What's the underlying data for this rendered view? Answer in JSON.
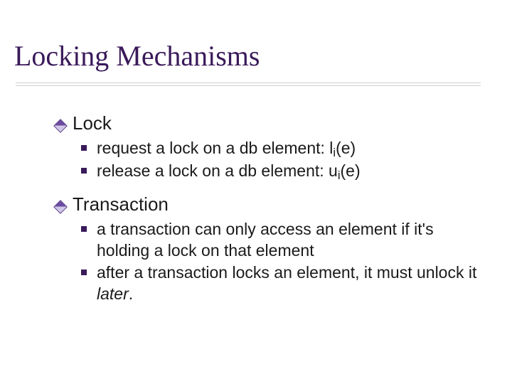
{
  "colors": {
    "title_color": "#3a1a5a",
    "body_color": "#1a1a1a",
    "diamond_border": "#5a3b8a",
    "square_color": "#3a1a5a",
    "rule_color": "#cfcfcf",
    "background": "#ffffff"
  },
  "typography": {
    "title_family": "Times New Roman",
    "title_size_pt": 40,
    "body_family": "Verdana",
    "level1_size_pt": 26,
    "level2_size_pt": 23
  },
  "title": "Locking Mechanisms",
  "sections": [
    {
      "heading": "Lock",
      "items": [
        {
          "prefix": "request a lock on a db element: l",
          "sub": "i",
          "suffix": "(e)"
        },
        {
          "prefix": "release a lock on a db element: u",
          "sub": "i",
          "suffix": "(e)"
        }
      ]
    },
    {
      "heading": "Transaction",
      "items": [
        {
          "text": "a transaction can only access an element if it's holding a lock on that element"
        },
        {
          "prefix": "after a transaction locks an element, it must unlock it ",
          "italic": "later",
          "suffix": "."
        }
      ]
    }
  ]
}
